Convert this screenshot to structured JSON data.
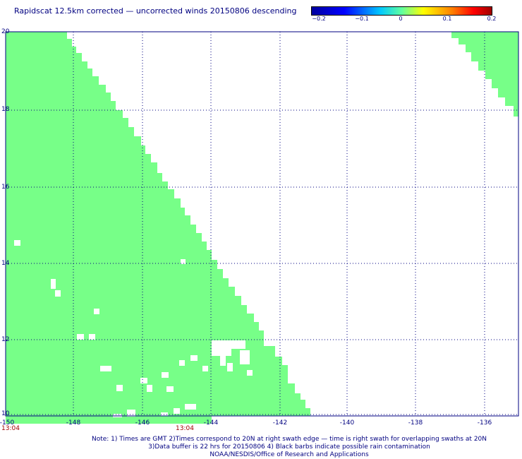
{
  "title": "Rapidscat 12.5km corrected — uncorrected winds 20150806 descending",
  "colorbar": {
    "labels": [
      "−0.2",
      "−0.1",
      "0",
      "0.1",
      "0.2"
    ],
    "colors": [
      "#0000a0",
      "#0000ff",
      "#00c8ff",
      "#60ffa0",
      "#ffff00",
      "#ff8000",
      "#ff0000",
      "#a00000"
    ]
  },
  "map": {
    "lon_range": [
      -150,
      -135
    ],
    "lat_range": [
      10,
      20
    ],
    "x_ticks": [
      "-150",
      "-148",
      "-146",
      "-144",
      "-142",
      "-140",
      "-138",
      "-136"
    ],
    "y_ticks": [
      "10",
      "12",
      "14",
      "16",
      "18",
      "20"
    ],
    "swath_color": "#77ff88",
    "grid_color": "#000080",
    "times": [
      "13:04",
      "13:04"
    ]
  },
  "notes": {
    "line1": "Note: 1) Times are GMT 2)Times correspond to 20N at right swath edge — time is right swath for overlapping swaths at 20N",
    "line2": "3)Data buffer is 22 hrs for 20150806 4) Black barbs indicate possible rain contamination",
    "line3": "NOAA/NESDIS/Office of Research and Applications"
  }
}
